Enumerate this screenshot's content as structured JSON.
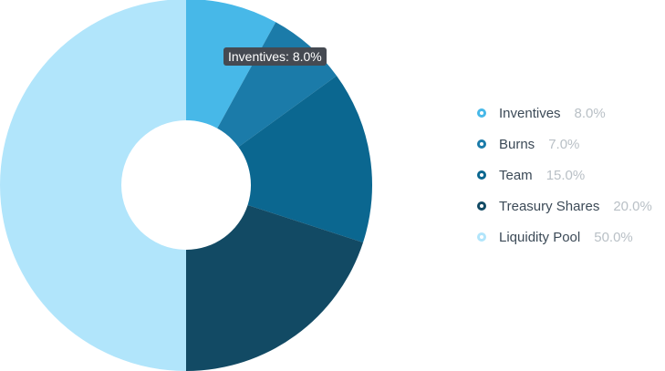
{
  "chart_data": {
    "type": "pie",
    "variant": "donut",
    "title": "",
    "slices": [
      {
        "label": "Inventives",
        "value": 8.0,
        "display": "8.0%",
        "color": "#47b8e8"
      },
      {
        "label": "Burns",
        "value": 7.0,
        "display": "7.0%",
        "color": "#1b7ba9"
      },
      {
        "label": "Team",
        "value": 15.0,
        "display": "15.0%",
        "color": "#0b6790"
      },
      {
        "label": "Treasury Shares",
        "value": 20.0,
        "display": "20.0%",
        "color": "#124a64"
      },
      {
        "label": "Liquidity Pool",
        "value": 50.0,
        "display": "50.0%",
        "color": "#b1e5fb"
      }
    ],
    "legend": "right",
    "tooltip": {
      "text": "Inventives: 8.0%",
      "slice": "Inventives"
    }
  }
}
